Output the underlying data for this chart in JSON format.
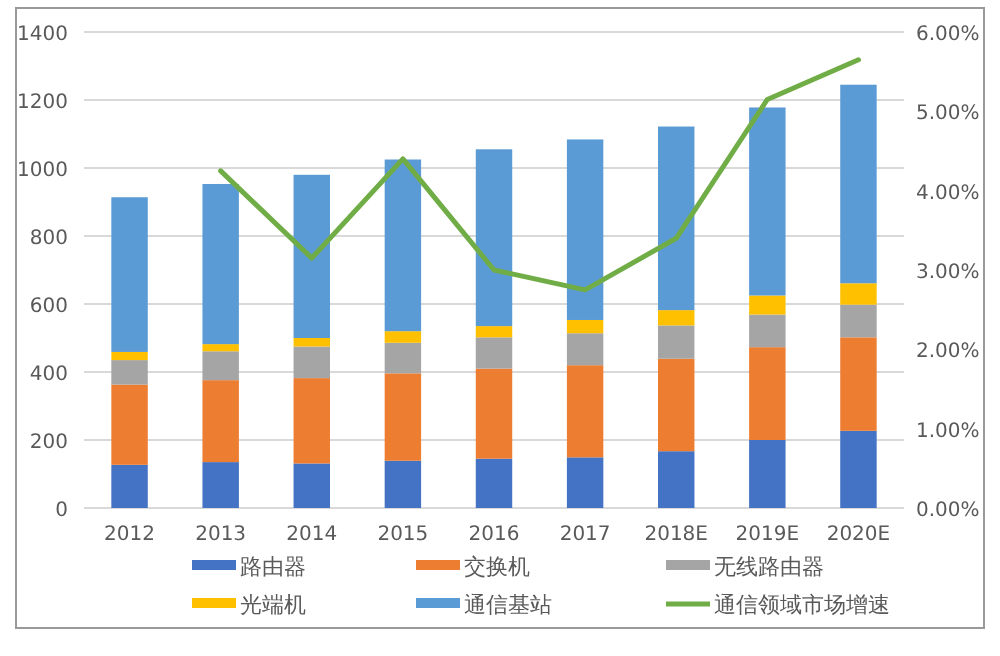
{
  "chart_data": {
    "type": "bar",
    "stacked": true,
    "categories": [
      "2012",
      "2013",
      "2014",
      "2015",
      "2016",
      "2017",
      "2018E",
      "2019E",
      "2020E"
    ],
    "series": [
      {
        "name": "路由器",
        "color": "#4472c4",
        "values": [
          127,
          135,
          131,
          139,
          145,
          149,
          167,
          200,
          227
        ]
      },
      {
        "name": "交换机",
        "color": "#ed7d31",
        "values": [
          236,
          241,
          251,
          257,
          265,
          271,
          272,
          273,
          275
        ]
      },
      {
        "name": "无线路由器",
        "color": "#a5a5a5",
        "values": [
          72,
          85,
          93,
          90,
          92,
          94,
          98,
          96,
          96
        ]
      },
      {
        "name": "光端机",
        "color": "#ffc000",
        "values": [
          24,
          21,
          25,
          34,
          33,
          39,
          45,
          56,
          63
        ]
      },
      {
        "name": "通信基站",
        "color": "#5b9bd5",
        "values": [
          455,
          471,
          480,
          505,
          520,
          531,
          540,
          553,
          584
        ]
      },
      {
        "name": "通信领域市场增速",
        "color": "#70ad47",
        "type": "line",
        "axis": "y2",
        "values": [
          null,
          4.25,
          3.15,
          4.4,
          3.0,
          2.75,
          3.4,
          5.15,
          5.65
        ]
      }
    ],
    "ylim": [
      0,
      1400
    ],
    "yticks": [
      0,
      200,
      400,
      600,
      800,
      1000,
      1200,
      1400
    ],
    "y2lim": [
      0,
      6
    ],
    "y2ticks": [
      {
        "value": 0,
        "label": "0.00%"
      },
      {
        "value": 1,
        "label": "1.00%"
      },
      {
        "value": 2,
        "label": "2.00%"
      },
      {
        "value": 3,
        "label": "3.00%"
      },
      {
        "value": 4,
        "label": "4.00%"
      },
      {
        "value": 5,
        "label": "5.00%"
      },
      {
        "value": 6,
        "label": "6.00%"
      }
    ],
    "grid": "y",
    "legend": "bottom",
    "marker": "none",
    "line_style": "solid"
  }
}
